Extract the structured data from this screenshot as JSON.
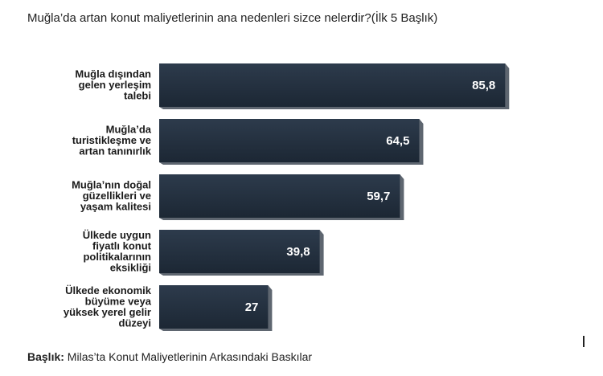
{
  "chart_data": {
    "type": "bar",
    "orientation": "horizontal",
    "title": "Muğla’da artan konut maliyetlerinin ana nedenleri sizce nelerdir?(İlk 5 Başlık)",
    "categories": [
      [
        "Muğla dışından",
        "gelen yerleşim",
        "talebi"
      ],
      [
        "Muğla’da",
        "turistikleşme ve",
        "artan tanınırlık"
      ],
      [
        "Muğla’nın doğal",
        "güzellikleri ve",
        "yaşam kalitesi"
      ],
      [
        "Ülkede uygun",
        "fiyatlı konut",
        "politikalarının",
        "eksikliği"
      ],
      [
        "Ülkede ekonomik",
        "büyüme veya",
        "yüksek yerel gelir",
        "düzeyi"
      ]
    ],
    "values": [
      85.8,
      64.5,
      59.7,
      39.8,
      27
    ],
    "value_labels": [
      "85,8",
      "64,5",
      "59,7",
      "39,8",
      "27"
    ],
    "xlim": [
      0,
      100
    ],
    "grid": false,
    "bar_color": "#233040"
  },
  "footer": {
    "label": "Başlık:",
    "text": " Milas’ta Konut Maliyetlerinin Arkasındaki Baskılar"
  }
}
